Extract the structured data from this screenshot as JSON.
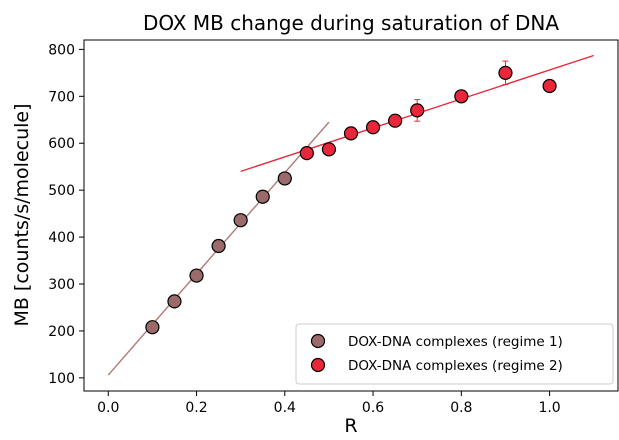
{
  "chart_data": {
    "type": "scatter",
    "title": "DOX MB change during saturation of DNA",
    "xlabel": "R",
    "ylabel": "MB [counts/s/molecule]",
    "xlim": [
      -0.055,
      1.155
    ],
    "ylim": [
      72,
      820
    ],
    "x_ticks": [
      0.0,
      0.2,
      0.4,
      0.6,
      0.8,
      1.0
    ],
    "x_tick_labels": [
      "0.0",
      "0.2",
      "0.4",
      "0.6",
      "0.8",
      "1.0"
    ],
    "y_ticks": [
      100,
      200,
      300,
      400,
      500,
      600,
      700,
      800
    ],
    "y_tick_labels": [
      "100",
      "200",
      "300",
      "400",
      "500",
      "600",
      "700",
      "800"
    ],
    "grid": false,
    "legend_position": "bottom-right",
    "series": [
      {
        "name": "DOX-DNA complexes (regime 1)",
        "color": "#9b6b6b",
        "x": [
          0.1,
          0.15,
          0.2,
          0.25,
          0.3,
          0.35,
          0.4
        ],
        "y": [
          208,
          263,
          318,
          381,
          436,
          486,
          525
        ],
        "error": [
          0,
          0,
          0,
          0,
          0,
          0,
          0
        ]
      },
      {
        "name": "DOX-DNA complexes (regime 2)",
        "color": "#e8283a",
        "x": [
          0.45,
          0.5,
          0.55,
          0.6,
          0.65,
          0.7,
          0.8,
          0.9,
          1.0
        ],
        "y": [
          579,
          587,
          621,
          634,
          648,
          670,
          700,
          750,
          722
        ],
        "error": [
          0,
          0,
          0,
          0,
          12,
          23,
          0,
          25,
          8
        ]
      }
    ],
    "fit_lines": [
      {
        "color": "#b07a76",
        "x": [
          0.0,
          0.5
        ],
        "y": [
          106,
          645
        ]
      },
      {
        "color": "#e8283a",
        "x": [
          0.3,
          1.1
        ],
        "y": [
          540,
          787
        ]
      }
    ]
  }
}
